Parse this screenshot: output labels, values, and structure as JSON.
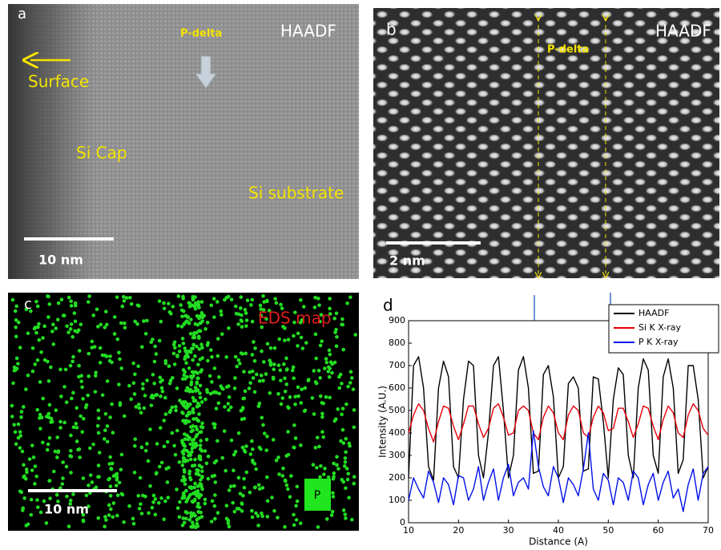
{
  "panels": {
    "a": {
      "label": "a",
      "mode": "HAADF",
      "marker": "P-delta",
      "surface": "Surface",
      "cap": "Si Cap",
      "substrate": "Si substrate",
      "scale": "10 nm"
    },
    "b": {
      "label": "b",
      "mode": "HAADF",
      "marker": "P-delta",
      "scale": "2 nm"
    },
    "c": {
      "label": "c",
      "title": "EDS map",
      "scale": "10 nm",
      "element": "P"
    },
    "d": {
      "label": "d"
    }
  },
  "chart_data": {
    "type": "line",
    "x_label": "Distance (A)",
    "y_label": "Intensity (A.U.)",
    "x": [
      10,
      11,
      12,
      13,
      14,
      15,
      16,
      17,
      18,
      19,
      20,
      21,
      22,
      23,
      24,
      25,
      26,
      27,
      28,
      29,
      30,
      31,
      32,
      33,
      34,
      35,
      36,
      37,
      38,
      39,
      40,
      41,
      42,
      43,
      44,
      45,
      46,
      47,
      48,
      49,
      50,
      51,
      52,
      53,
      54,
      55,
      56,
      57,
      58,
      59,
      60,
      61,
      62,
      63,
      64,
      65,
      66,
      67,
      68,
      69,
      70
    ],
    "series": [
      {
        "name": "HAADF",
        "color": "#000000",
        "values": [
          200,
          700,
          740,
          600,
          250,
          190,
          600,
          720,
          650,
          250,
          200,
          550,
          720,
          700,
          300,
          200,
          400,
          700,
          740,
          500,
          200,
          300,
          680,
          740,
          600,
          220,
          230,
          660,
          700,
          560,
          200,
          250,
          620,
          650,
          600,
          230,
          240,
          650,
          640,
          450,
          200,
          550,
          690,
          660,
          300,
          200,
          600,
          730,
          680,
          300,
          220,
          650,
          730,
          600,
          220,
          280,
          700,
          700,
          550,
          200,
          250
        ]
      },
      {
        "name": "Si K X-ray",
        "color": "#e8000b",
        "values": [
          400,
          480,
          530,
          500,
          420,
          360,
          450,
          520,
          510,
          430,
          370,
          440,
          520,
          520,
          440,
          380,
          420,
          510,
          530,
          470,
          390,
          400,
          500,
          520,
          500,
          400,
          370,
          470,
          520,
          490,
          400,
          370,
          480,
          520,
          500,
          400,
          380,
          470,
          520,
          490,
          410,
          420,
          510,
          510,
          450,
          380,
          440,
          520,
          510,
          430,
          370,
          460,
          520,
          490,
          400,
          380,
          480,
          530,
          500,
          420,
          390
        ]
      },
      {
        "name": "P K X-ray",
        "color": "#0010e8",
        "values": [
          100,
          200,
          150,
          110,
          230,
          180,
          90,
          200,
          170,
          80,
          210,
          200,
          100,
          150,
          250,
          100,
          180,
          240,
          100,
          200,
          260,
          120,
          180,
          200,
          150,
          410,
          250,
          160,
          120,
          250,
          200,
          90,
          200,
          170,
          120,
          240,
          400,
          150,
          100,
          220,
          190,
          80,
          200,
          180,
          100,
          230,
          200,
          80,
          170,
          220,
          100,
          180,
          230,
          110,
          150,
          50,
          170,
          240,
          100,
          220,
          250
        ]
      }
    ],
    "xlim": [
      10,
      70
    ],
    "ylim": [
      0,
      900
    ],
    "xticks": [
      10,
      20,
      30,
      40,
      50,
      60,
      70
    ],
    "yticks": [
      0,
      100,
      200,
      300,
      400,
      500,
      600,
      700,
      800,
      900
    ],
    "legend": "upper right"
  }
}
